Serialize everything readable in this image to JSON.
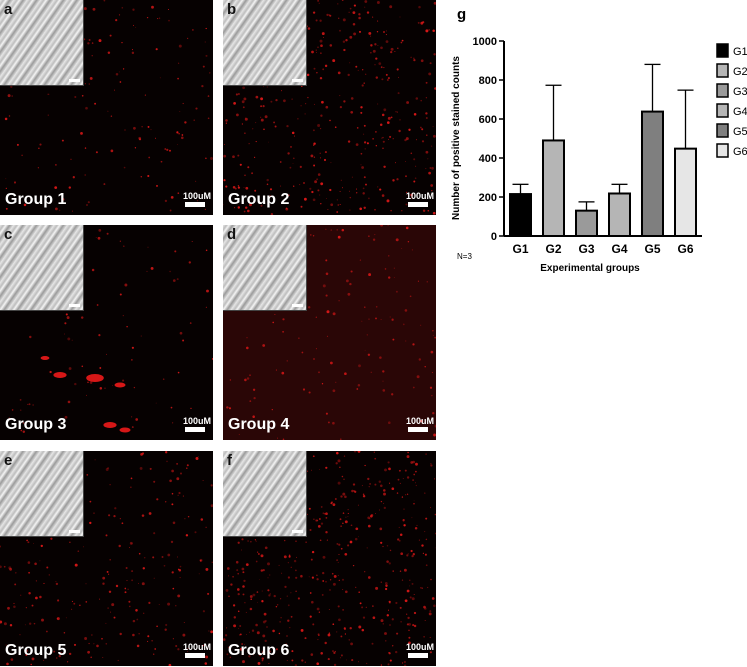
{
  "panels": [
    {
      "letter": "a",
      "group_label": "Group 1",
      "scale_label": "100uM"
    },
    {
      "letter": "b",
      "group_label": "Group 2",
      "scale_label": "100uM"
    },
    {
      "letter": "c",
      "group_label": "Group 3",
      "scale_label": "100uM"
    },
    {
      "letter": "d",
      "group_label": "Group 4",
      "scale_label": "100uM"
    },
    {
      "letter": "e",
      "group_label": "Group 5",
      "scale_label": "100uM"
    },
    {
      "letter": "f",
      "group_label": "Group 6",
      "scale_label": "100uM"
    }
  ],
  "chart_panel_letter": "g",
  "sample_size_label": "N=3",
  "colors": {
    "fluorescence": "#d61717",
    "tissue_background": "#060101"
  },
  "chart_data": {
    "type": "bar",
    "title": "",
    "xlabel": "Experimental groups",
    "ylabel": "Number of positive stained counts",
    "categories": [
      "G1",
      "G2",
      "G3",
      "G4",
      "G5",
      "G6"
    ],
    "values": [
      215,
      490,
      130,
      218,
      638,
      448
    ],
    "error_upper": [
      265,
      773,
      175,
      265,
      880,
      748
    ],
    "ylim": [
      0,
      1000
    ],
    "yticks": [
      0,
      200,
      400,
      600,
      800,
      1000
    ],
    "bar_colors": [
      "#000000",
      "#b5b5b5",
      "#9a9a9a",
      "#b5b5b5",
      "#7f7f7f",
      "#e6e6e6"
    ],
    "legend": [
      "G1",
      "G2",
      "G3",
      "G4",
      "G5",
      "G6"
    ],
    "legend_position": "right",
    "grid": false
  }
}
